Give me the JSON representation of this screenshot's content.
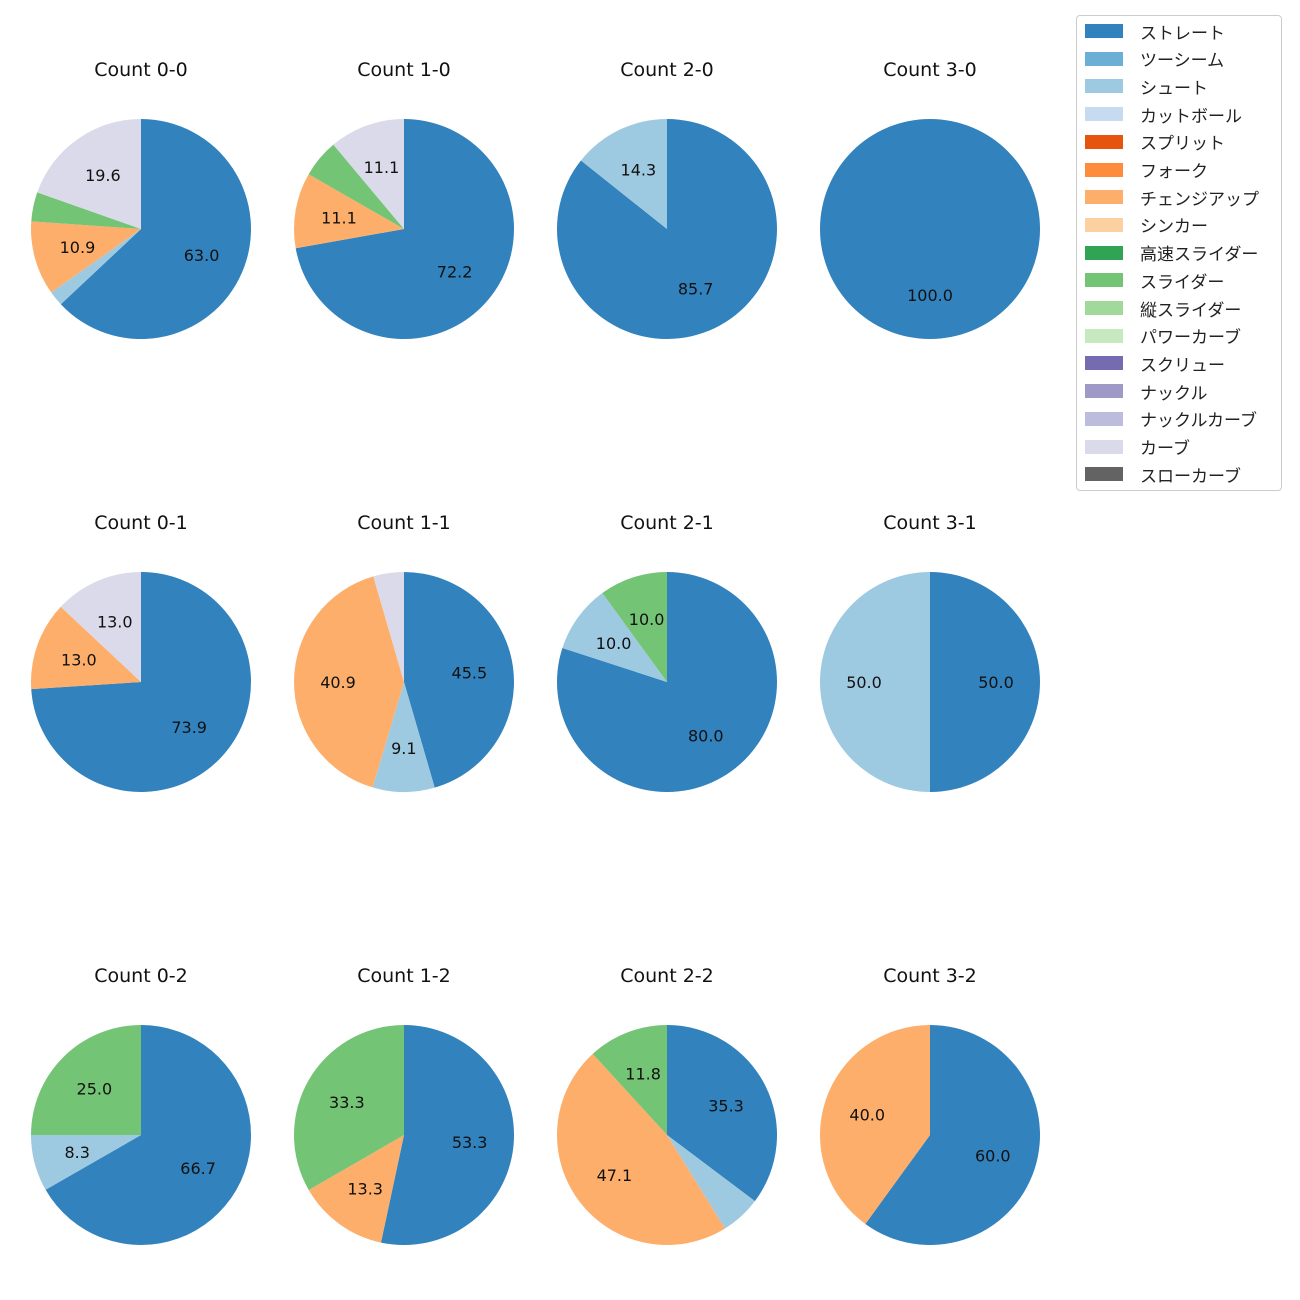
{
  "colors": {
    "ストレート": "#3182bd",
    "ツーシーム": "#6baed6",
    "シュート": "#9ecae1",
    "カットボール": "#c6dbef",
    "スプリット": "#e6550d",
    "フォーク": "#fd8d3c",
    "チェンジアップ": "#fdae6b",
    "シンカー": "#fdd0a2",
    "高速スライダー": "#31a354",
    "スライダー": "#74c476",
    "縦スライダー": "#a1d99b",
    "パワーカーブ": "#c7e9c0",
    "スクリュー": "#756bb1",
    "ナックル": "#9e9ac8",
    "ナックルカーブ": "#bcbddc",
    "カーブ": "#dadaeb",
    "スローカーブ": "#636363"
  },
  "legend": [
    "ストレート",
    "ツーシーム",
    "シュート",
    "カットボール",
    "スプリット",
    "フォーク",
    "チェンジアップ",
    "シンカー",
    "高速スライダー",
    "スライダー",
    "縦スライダー",
    "パワーカーブ",
    "スクリュー",
    "ナックル",
    "ナックルカーブ",
    "カーブ",
    "スローカーブ"
  ],
  "chart_data": [
    {
      "type": "pie",
      "title": "Count 0-0",
      "slices": [
        {
          "label": "ストレート",
          "value": 63.0,
          "text": "63.0"
        },
        {
          "label": "シュート",
          "value": 2.2,
          "text": ""
        },
        {
          "label": "チェンジアップ",
          "value": 10.9,
          "text": "10.9"
        },
        {
          "label": "スライダー",
          "value": 4.3,
          "text": ""
        },
        {
          "label": "カーブ",
          "value": 19.6,
          "text": "19.6"
        }
      ]
    },
    {
      "type": "pie",
      "title": "Count 1-0",
      "slices": [
        {
          "label": "ストレート",
          "value": 72.2,
          "text": "72.2"
        },
        {
          "label": "チェンジアップ",
          "value": 11.1,
          "text": "11.1"
        },
        {
          "label": "スライダー",
          "value": 5.6,
          "text": ""
        },
        {
          "label": "カーブ",
          "value": 11.1,
          "text": "11.1"
        }
      ]
    },
    {
      "type": "pie",
      "title": "Count 2-0",
      "slices": [
        {
          "label": "ストレート",
          "value": 85.7,
          "text": "85.7"
        },
        {
          "label": "シュート",
          "value": 14.3,
          "text": "14.3"
        }
      ]
    },
    {
      "type": "pie",
      "title": "Count 3-0",
      "slices": [
        {
          "label": "ストレート",
          "value": 100.0,
          "text": "100.0"
        }
      ]
    },
    {
      "type": "pie",
      "title": "Count 0-1",
      "slices": [
        {
          "label": "ストレート",
          "value": 73.9,
          "text": "73.9"
        },
        {
          "label": "チェンジアップ",
          "value": 13.0,
          "text": "13.0"
        },
        {
          "label": "カーブ",
          "value": 13.0,
          "text": "13.0"
        }
      ]
    },
    {
      "type": "pie",
      "title": "Count 1-1",
      "slices": [
        {
          "label": "ストレート",
          "value": 45.5,
          "text": "45.5"
        },
        {
          "label": "シュート",
          "value": 9.1,
          "text": "9.1"
        },
        {
          "label": "チェンジアップ",
          "value": 40.9,
          "text": "40.9"
        },
        {
          "label": "カーブ",
          "value": 4.5,
          "text": ""
        }
      ]
    },
    {
      "type": "pie",
      "title": "Count 2-1",
      "slices": [
        {
          "label": "ストレート",
          "value": 80.0,
          "text": "80.0"
        },
        {
          "label": "シュート",
          "value": 10.0,
          "text": "10.0"
        },
        {
          "label": "スライダー",
          "value": 10.0,
          "text": "10.0"
        }
      ]
    },
    {
      "type": "pie",
      "title": "Count 3-1",
      "slices": [
        {
          "label": "ストレート",
          "value": 50.0,
          "text": "50.0"
        },
        {
          "label": "シュート",
          "value": 50.0,
          "text": "50.0"
        }
      ]
    },
    {
      "type": "pie",
      "title": "Count 0-2",
      "slices": [
        {
          "label": "ストレート",
          "value": 66.7,
          "text": "66.7"
        },
        {
          "label": "シュート",
          "value": 8.3,
          "text": "8.3"
        },
        {
          "label": "スライダー",
          "value": 25.0,
          "text": "25.0"
        }
      ]
    },
    {
      "type": "pie",
      "title": "Count 1-2",
      "slices": [
        {
          "label": "ストレート",
          "value": 53.3,
          "text": "53.3"
        },
        {
          "label": "チェンジアップ",
          "value": 13.3,
          "text": "13.3"
        },
        {
          "label": "スライダー",
          "value": 33.3,
          "text": "33.3"
        }
      ]
    },
    {
      "type": "pie",
      "title": "Count 2-2",
      "slices": [
        {
          "label": "ストレート",
          "value": 35.3,
          "text": "35.3"
        },
        {
          "label": "シュート",
          "value": 5.9,
          "text": ""
        },
        {
          "label": "チェンジアップ",
          "value": 47.1,
          "text": "47.1"
        },
        {
          "label": "スライダー",
          "value": 11.8,
          "text": "11.8"
        }
      ]
    },
    {
      "type": "pie",
      "title": "Count 3-2",
      "slices": [
        {
          "label": "ストレート",
          "value": 60.0,
          "text": "60.0"
        },
        {
          "label": "チェンジアップ",
          "value": 40.0,
          "text": "40.0"
        }
      ]
    }
  ]
}
